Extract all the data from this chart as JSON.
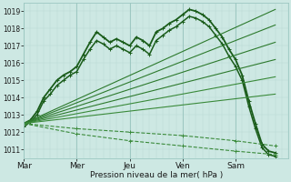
{
  "xlabel": "Pression niveau de la mer( hPa )",
  "ylim": [
    1010.5,
    1019.5
  ],
  "yticks": [
    1011,
    1012,
    1013,
    1014,
    1015,
    1016,
    1017,
    1018,
    1019
  ],
  "day_labels": [
    "Mar",
    "Mer",
    "Jeu",
    "Ven",
    "Sam"
  ],
  "day_positions": [
    0,
    48,
    96,
    144,
    192
  ],
  "total_steps": 240,
  "bg_color": "#cde8e3",
  "grid_color_minor": "#b8d8d3",
  "grid_color_major": "#9dc8c2",
  "line_color_dark": "#1a5c1a",
  "line_color_mid": "#2d7a2d",
  "marker": "+",
  "markersize": 2.5,
  "series": [
    {
      "x": [
        0,
        6,
        12,
        18,
        24,
        30,
        36,
        42,
        48,
        54,
        60,
        66,
        72,
        78,
        84,
        90,
        96,
        102,
        108,
        114,
        120,
        126,
        132,
        138,
        144,
        150,
        156,
        162,
        168,
        174,
        180,
        186,
        192,
        198,
        204,
        210,
        216,
        222,
        228
      ],
      "y": [
        1012.5,
        1012.7,
        1013.2,
        1014.0,
        1014.5,
        1015.0,
        1015.3,
        1015.5,
        1015.8,
        1016.5,
        1017.2,
        1017.8,
        1017.5,
        1017.2,
        1017.4,
        1017.2,
        1017.0,
        1017.5,
        1017.3,
        1017.0,
        1017.8,
        1018.0,
        1018.3,
        1018.5,
        1018.8,
        1019.1,
        1019.0,
        1018.8,
        1018.5,
        1018.0,
        1017.5,
        1016.8,
        1016.2,
        1015.3,
        1013.8,
        1012.5,
        1011.3,
        1010.9,
        1010.8
      ],
      "style": "solid",
      "lw": 1.3,
      "color": "#1a5c1a",
      "with_marker": true
    },
    {
      "x": [
        0,
        6,
        12,
        18,
        24,
        30,
        36,
        42,
        48,
        54,
        60,
        66,
        72,
        78,
        84,
        90,
        96,
        102,
        108,
        114,
        120,
        126,
        132,
        138,
        144,
        150,
        156,
        162,
        168,
        174,
        180,
        186,
        192,
        198,
        204,
        210,
        216,
        222,
        228
      ],
      "y": [
        1012.3,
        1012.6,
        1013.0,
        1013.8,
        1014.2,
        1014.7,
        1015.0,
        1015.3,
        1015.5,
        1016.2,
        1016.8,
        1017.3,
        1017.1,
        1016.8,
        1017.0,
        1016.8,
        1016.6,
        1017.0,
        1016.8,
        1016.5,
        1017.3,
        1017.6,
        1017.9,
        1018.1,
        1018.4,
        1018.7,
        1018.6,
        1018.4,
        1018.1,
        1017.6,
        1017.1,
        1016.4,
        1015.8,
        1015.0,
        1013.5,
        1012.2,
        1011.1,
        1010.7,
        1010.6
      ],
      "style": "solid",
      "lw": 1.1,
      "color": "#1a5c1a",
      "with_marker": true
    },
    {
      "x": [
        0,
        228
      ],
      "y": [
        1012.5,
        1019.1
      ],
      "style": "solid",
      "lw": 0.8,
      "color": "#2d7a2d",
      "with_marker": false
    },
    {
      "x": [
        0,
        228
      ],
      "y": [
        1012.5,
        1018.2
      ],
      "style": "solid",
      "lw": 0.8,
      "color": "#2d7a2d",
      "with_marker": false
    },
    {
      "x": [
        0,
        228
      ],
      "y": [
        1012.5,
        1017.2
      ],
      "style": "solid",
      "lw": 0.8,
      "color": "#2d7a2d",
      "with_marker": false
    },
    {
      "x": [
        0,
        228
      ],
      "y": [
        1012.5,
        1016.2
      ],
      "style": "solid",
      "lw": 0.8,
      "color": "#2d7a2d",
      "with_marker": false
    },
    {
      "x": [
        0,
        228
      ],
      "y": [
        1012.5,
        1015.2
      ],
      "style": "solid",
      "lw": 0.8,
      "color": "#3a8a3a",
      "with_marker": false
    },
    {
      "x": [
        0,
        228
      ],
      "y": [
        1012.5,
        1014.2
      ],
      "style": "solid",
      "lw": 0.8,
      "color": "#3a8a3a",
      "with_marker": false
    },
    {
      "x": [
        0,
        48,
        96,
        144,
        192,
        228
      ],
      "y": [
        1012.5,
        1012.2,
        1012.0,
        1011.8,
        1011.5,
        1011.2
      ],
      "style": "dashed",
      "lw": 0.8,
      "color": "#3a8a3a",
      "with_marker": true
    },
    {
      "x": [
        0,
        48,
        96,
        144,
        192,
        228
      ],
      "y": [
        1012.5,
        1011.9,
        1011.5,
        1011.2,
        1010.9,
        1010.7
      ],
      "style": "dashed",
      "lw": 0.8,
      "color": "#3a8a3a",
      "with_marker": true
    }
  ]
}
